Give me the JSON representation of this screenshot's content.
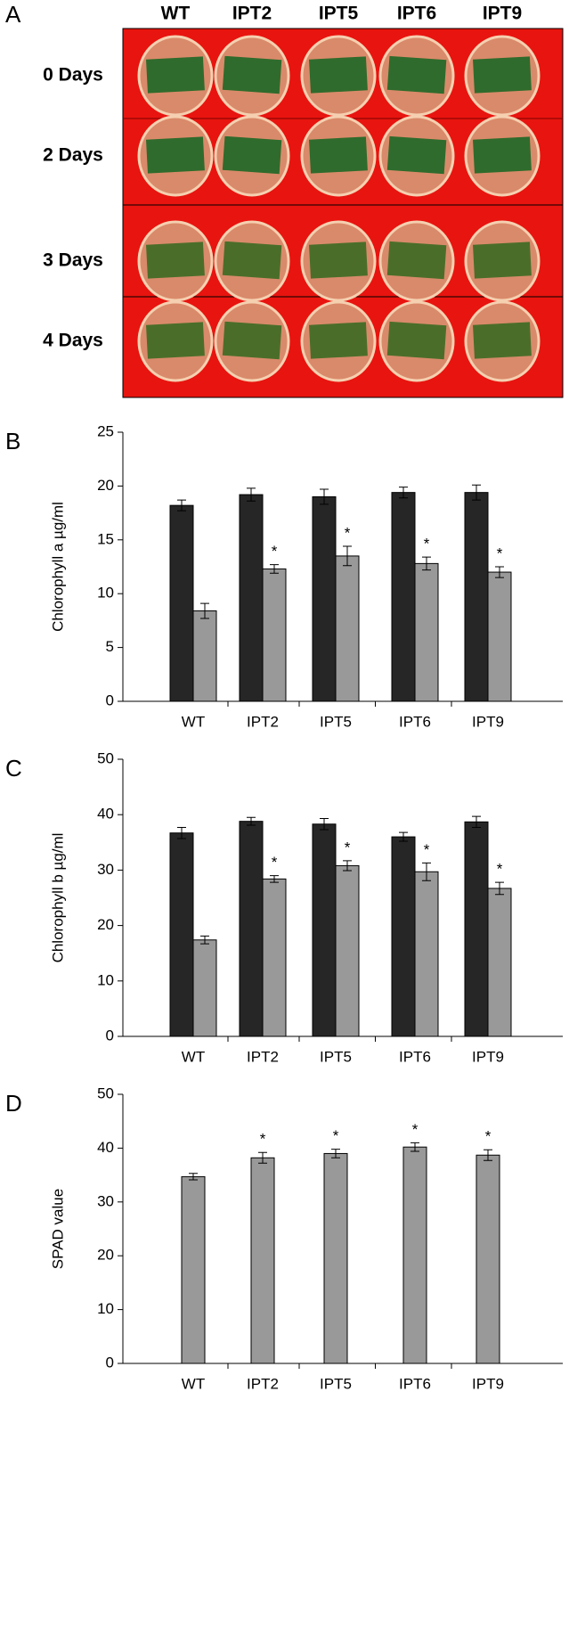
{
  "photo": {
    "panel_label": "A",
    "columns": [
      "WT",
      "IPT2",
      "IPT5",
      "IPT6",
      "IPT9"
    ],
    "rows": [
      "0 Days",
      "2 Days",
      "3 Days",
      "4 Days"
    ]
  },
  "chart_data": [
    {
      "type": "bar",
      "panel_label": "B",
      "y_label": "Chlorophyll a µg/ml",
      "categories": [
        "WT",
        "IPT2",
        "IPT5",
        "IPT6",
        "IPT9"
      ],
      "series": [
        {
          "color": "#262626",
          "values": [
            18.2,
            19.2,
            19.0,
            19.4,
            19.4
          ],
          "errors": [
            0.5,
            0.6,
            0.7,
            0.5,
            0.7
          ],
          "markers": [
            null,
            null,
            null,
            null,
            null
          ]
        },
        {
          "color": "#999999",
          "values": [
            8.4,
            12.3,
            13.5,
            12.8,
            12.0
          ],
          "errors": [
            0.7,
            0.4,
            0.9,
            0.6,
            0.5
          ],
          "markers": [
            null,
            "*",
            "*",
            "*",
            "*"
          ]
        }
      ],
      "ylim": [
        0,
        25
      ],
      "yticks": [
        0,
        5,
        10,
        15,
        20,
        25
      ]
    },
    {
      "type": "bar",
      "panel_label": "C",
      "y_label": "Chlorophyll b µg/ml",
      "categories": [
        "WT",
        "IPT2",
        "IPT5",
        "IPT6",
        "IPT9"
      ],
      "series": [
        {
          "color": "#262626",
          "values": [
            36.7,
            38.8,
            38.3,
            36.0,
            38.7
          ],
          "errors": [
            1.0,
            0.7,
            1.0,
            0.8,
            1.0
          ],
          "markers": [
            null,
            null,
            null,
            null,
            null
          ]
        },
        {
          "color": "#999999",
          "values": [
            17.4,
            28.4,
            30.8,
            29.7,
            26.7
          ],
          "errors": [
            0.7,
            0.6,
            0.9,
            1.6,
            1.1
          ],
          "markers": [
            null,
            "*",
            "*",
            "*",
            "*"
          ]
        }
      ],
      "ylim": [
        0,
        50
      ],
      "yticks": [
        0,
        10,
        20,
        30,
        40,
        50
      ]
    },
    {
      "type": "bar",
      "panel_label": "D",
      "y_label": "SPAD value",
      "categories": [
        "WT",
        "IPT2",
        "IPT5",
        "IPT6",
        "IPT9"
      ],
      "series": [
        {
          "color": "#999999",
          "values": [
            34.7,
            38.2,
            39.0,
            40.2,
            38.7
          ],
          "errors": [
            0.6,
            1.0,
            0.8,
            0.8,
            1.0
          ],
          "markers": [
            null,
            "*",
            "*",
            "*",
            "*"
          ]
        }
      ],
      "ylim": [
        0,
        50
      ],
      "yticks": [
        0,
        10,
        20,
        30,
        40,
        50
      ]
    }
  ]
}
